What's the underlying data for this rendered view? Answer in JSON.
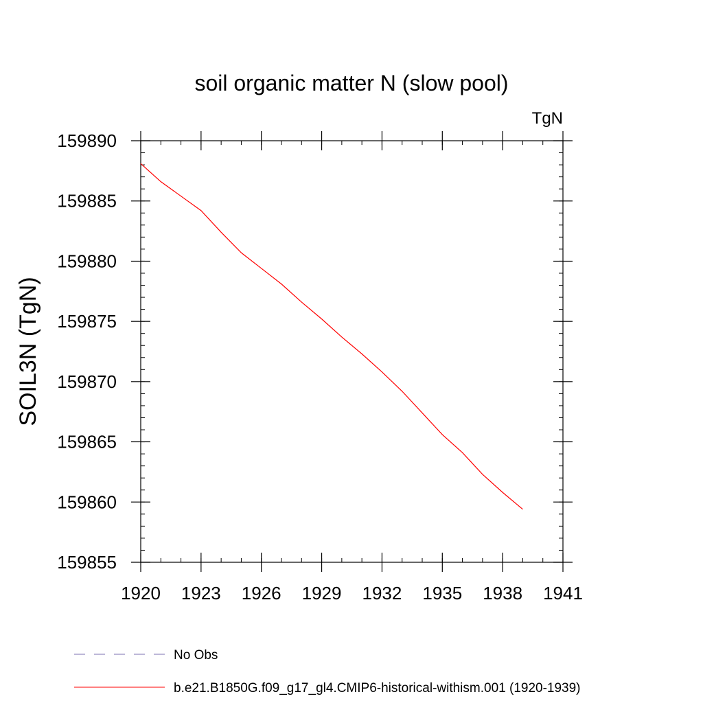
{
  "chart_data": {
    "type": "line",
    "title": "soil organic matter N (slow pool)",
    "units_label": "TgN",
    "ylabel": "SOIL3N  (TgN)",
    "xlabel": "",
    "xlim": [
      1920,
      1941
    ],
    "ylim": [
      159855,
      159890
    ],
    "xticks": [
      1920,
      1923,
      1926,
      1929,
      1932,
      1935,
      1938,
      1941
    ],
    "yticks": [
      159890,
      159885,
      159880,
      159875,
      159870,
      159865,
      159860,
      159855
    ],
    "x_minor_step": 1,
    "y_minor_step": 1,
    "grid": false,
    "legend_position": "bottom",
    "series": [
      {
        "name": "b.e21.B1850G.f09_g17_gl4.CMIP6-historical-withism.001 (1920-1939)",
        "color": "#ff0000",
        "style": "solid",
        "x": [
          1920,
          1921,
          1922,
          1923,
          1924,
          1925,
          1926,
          1927,
          1928,
          1929,
          1930,
          1931,
          1932,
          1933,
          1934,
          1935,
          1936,
          1937,
          1938,
          1939
        ],
        "values": [
          159888.1,
          159886.6,
          159885.4,
          159884.2,
          159882.4,
          159880.7,
          159879.4,
          159878.1,
          159876.6,
          159875.2,
          159873.7,
          159872.3,
          159870.8,
          159869.2,
          159867.4,
          159865.6,
          159864.1,
          159862.3,
          159860.8,
          159859.4
        ]
      }
    ],
    "legend": [
      {
        "label": "No Obs",
        "color": "#7b6fb0",
        "style": "dashed"
      },
      {
        "label": "b.e21.B1850G.f09_g17_gl4.CMIP6-historical-withism.001 (1920-1939)",
        "color": "#ff0000",
        "style": "solid"
      }
    ]
  }
}
